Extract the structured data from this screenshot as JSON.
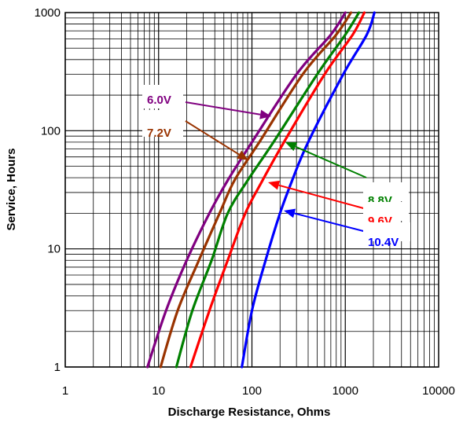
{
  "chart_data": {
    "type": "line",
    "title": "",
    "xlabel": "Discharge Resistance, Ohms",
    "ylabel": "Service, Hours",
    "x_scale": "log",
    "y_scale": "log",
    "xlim": [
      1,
      10000
    ],
    "ylim": [
      1,
      1000
    ],
    "x_ticks": [
      "1",
      "10",
      "100",
      "1000",
      "10000"
    ],
    "y_ticks": [
      "1",
      "10",
      "100",
      "1000"
    ],
    "grid": true,
    "legend": "none (series labeled with arrows)",
    "series": [
      {
        "name": "6.0V",
        "color": "#800080",
        "points": [
          [
            7.6,
            1
          ],
          [
            12,
            3
          ],
          [
            20,
            8
          ],
          [
            35,
            20
          ],
          [
            55,
            38
          ],
          [
            100,
            80
          ],
          [
            300,
            300
          ],
          [
            700,
            650
          ],
          [
            1000,
            1000
          ]
        ]
      },
      {
        "name": "7.2V",
        "color": "#993300",
        "points": [
          [
            10.5,
            1
          ],
          [
            16,
            3
          ],
          [
            27,
            8
          ],
          [
            45,
            20
          ],
          [
            65,
            38
          ],
          [
            120,
            80
          ],
          [
            350,
            300
          ],
          [
            800,
            650
          ],
          [
            1150,
            1000
          ]
        ]
      },
      {
        "name": "8.8V",
        "color": "#008000",
        "points": [
          [
            15.5,
            1
          ],
          [
            23,
            3
          ],
          [
            37,
            8
          ],
          [
            55,
            20
          ],
          [
            90,
            38
          ],
          [
            170,
            80
          ],
          [
            500,
            300
          ],
          [
            1000,
            650
          ],
          [
            1400,
            1000
          ]
        ]
      },
      {
        "name": "9.6V",
        "color": "#ff0000",
        "points": [
          [
            22,
            1
          ],
          [
            35,
            3
          ],
          [
            55,
            8
          ],
          [
            85,
            20
          ],
          [
            130,
            38
          ],
          [
            220,
            80
          ],
          [
            600,
            300
          ],
          [
            1200,
            650
          ],
          [
            1600,
            1000
          ]
        ]
      },
      {
        "name": "10.4V",
        "color": "#0000ff",
        "points": [
          [
            78,
            1
          ],
          [
            100,
            3
          ],
          [
            140,
            8
          ],
          [
            200,
            20
          ],
          [
            270,
            38
          ],
          [
            400,
            80
          ],
          [
            950,
            300
          ],
          [
            1700,
            650
          ],
          [
            2050,
            1000
          ]
        ]
      }
    ]
  }
}
